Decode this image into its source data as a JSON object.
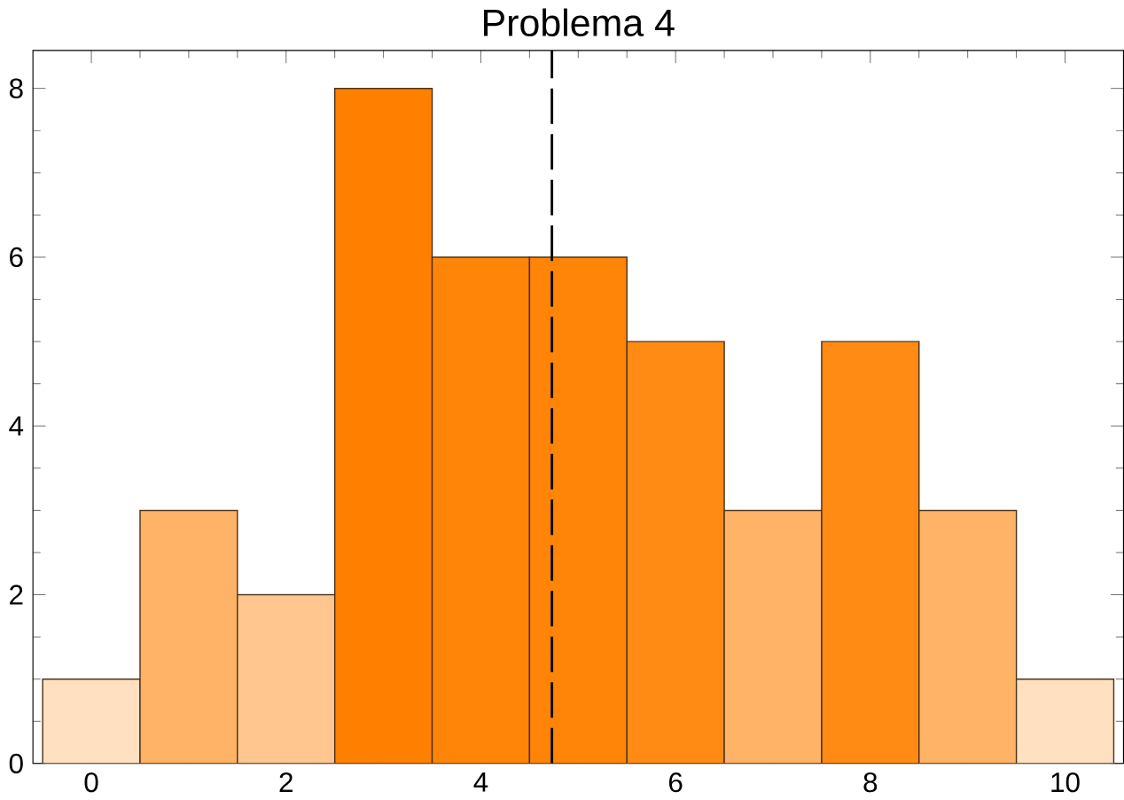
{
  "chart_data": {
    "type": "histogram",
    "title": "Problema 4",
    "bins": [
      -0.5,
      0.5,
      1.5,
      2.5,
      3.5,
      4.5,
      5.5,
      6.5,
      7.5,
      8.5,
      9.5,
      10.5
    ],
    "values": [
      1,
      3,
      2,
      8,
      6,
      6,
      5,
      3,
      5,
      3,
      1
    ],
    "colors": [
      "#ffe0c0",
      "#ffb366",
      "#ffc690",
      "#ff8000",
      "#ff8508",
      "#ff8508",
      "#ff8a14",
      "#ffb366",
      "#ff8a14",
      "#ffb366",
      "#ffe0c0"
    ],
    "xlim": [
      -0.6,
      10.6
    ],
    "ylim": [
      0,
      8.45
    ],
    "xticks": [
      0,
      2,
      4,
      6,
      8,
      10
    ],
    "yticks": [
      0,
      2,
      4,
      6,
      8
    ],
    "ref_lines": [
      {
        "axis": "x",
        "value": 4.73,
        "color": "#000000",
        "line_style": "dashed"
      }
    ],
    "grid": false
  }
}
